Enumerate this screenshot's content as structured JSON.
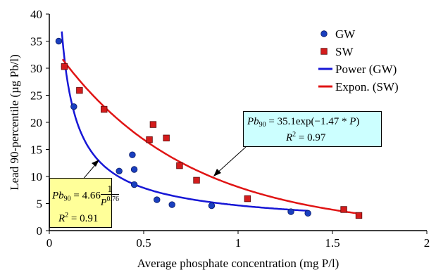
{
  "chart_data": {
    "type": "scatter",
    "xlabel": "Average phosphate concentration (mg P/l)",
    "ylabel": "Lead 90-percentile (µg Pb/l)",
    "xlim": [
      0,
      2
    ],
    "ylim": [
      0,
      40
    ],
    "x_ticks": [
      "0",
      "0.5",
      "1",
      "1.5",
      "2"
    ],
    "y_ticks": [
      "0",
      "5",
      "10",
      "15",
      "20",
      "25",
      "30",
      "35",
      "40"
    ],
    "grid": false,
    "legend_position": "top-right",
    "series": [
      {
        "name": "GW",
        "marker": "circle",
        "color": "#1a3fbf",
        "x": [
          0.05,
          0.08,
          0.13,
          0.37,
          0.44,
          0.45,
          0.45,
          0.57,
          0.65,
          0.86,
          1.28,
          1.37
        ],
        "y": [
          35.0,
          30.3,
          22.9,
          11.0,
          14.0,
          11.3,
          8.5,
          5.7,
          4.8,
          4.6,
          3.5,
          3.2
        ]
      },
      {
        "name": "SW",
        "marker": "square",
        "color": "#d41c1c",
        "x": [
          0.08,
          0.16,
          0.29,
          0.53,
          0.55,
          0.62,
          0.69,
          0.78,
          1.05,
          1.56,
          1.64
        ],
        "y": [
          30.3,
          25.9,
          22.4,
          16.8,
          19.6,
          17.1,
          12.0,
          9.3,
          5.9,
          3.9,
          2.8
        ]
      },
      {
        "name": "Power (GW)",
        "line": true,
        "color": "#1717d6",
        "fit": "power",
        "a": 4.66,
        "b": 0.76,
        "x_range": [
          0.066,
          1.37
        ]
      },
      {
        "name": "Expon. (SW)",
        "line": true,
        "color": "#e01414",
        "fit": "exponential",
        "a": 35.1,
        "b": -1.47,
        "x_range": [
          0.07,
          1.64
        ]
      }
    ],
    "annotations": {
      "power": {
        "eq_prefix": "Pb",
        "eq_sub": "90",
        "eq_mid": " = 4.66",
        "frac_num": "1",
        "frac_den": "P",
        "frac_exp": "0.76",
        "r2_prefix": "R",
        "r2_sup": "2",
        "r2_value": " = 0.91",
        "box_color": "#ffff99"
      },
      "expon": {
        "eq_prefix": "Pb",
        "eq_sub": "90",
        "eq_mid": " = 35.1exp(−1.47 * ",
        "eq_var": "P",
        "eq_end": ")",
        "r2_prefix": "R",
        "r2_sup": "2",
        "r2_value": " = 0.97",
        "box_color": "#ccffff"
      }
    }
  }
}
